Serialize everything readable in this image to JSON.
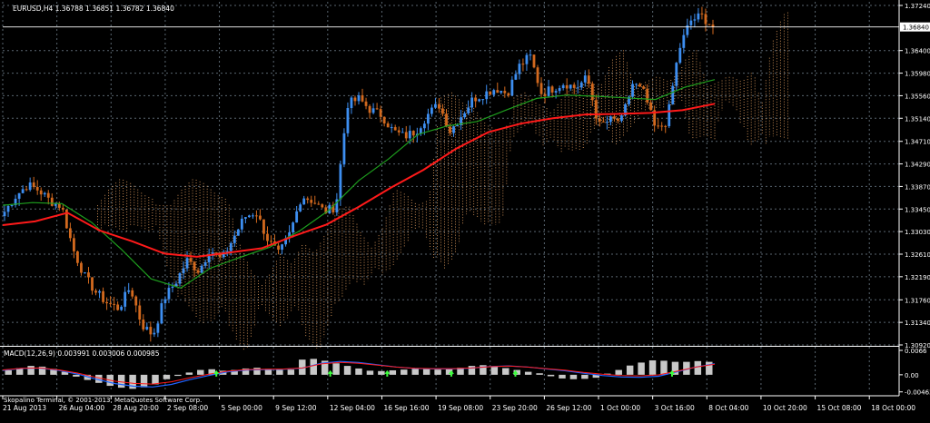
{
  "window": {
    "symbol_caption": "EURUSD,H4  1.36788 1.36851 1.36782 1.36840",
    "macd_caption": "MACD(12,26,9) 0.003991 0.003006 0.000985",
    "copyright": "Skopalino Terminal, © 2001-2013, MetaQuotes Software Corp."
  },
  "colors": {
    "background": "#000000",
    "grid": "#5a6670",
    "axis_text": "#ffffff",
    "candle_up": "#3d8ef0",
    "candle_down": "#d2691e",
    "ma_fast": "#1e9e1e",
    "ma_slow": "#ff1a1a",
    "cloud": "#ffb26b",
    "macd_hist": "#c8c8c8",
    "macd_signal": "#1e64ff",
    "price_line": "#ffffff",
    "arrow": "#3cff3c"
  },
  "chart_data": [
    {
      "type": "candlestick",
      "symbol": "EURUSD",
      "timeframe": "H4",
      "ohlc_last": {
        "open": 1.36788,
        "high": 1.36851,
        "low": 1.36782,
        "close": 1.3684
      },
      "ylim": [
        1.3092,
        1.3724
      ],
      "price_ticks": [
        "1.37240",
        "1.36400",
        "1.35980",
        "1.35560",
        "1.35140",
        "1.34710",
        "1.34290",
        "1.33870",
        "1.33450",
        "1.33030",
        "1.32610",
        "1.32190",
        "1.31760",
        "1.31340",
        "1.30920"
      ],
      "current_price_label": "1.36840",
      "time_ticks": [
        "21 Aug 2013",
        "26 Aug 04:00",
        "28 Aug 20:00",
        "2 Sep 08:00",
        "5 Sep 00:00",
        "9 Sep 12:00",
        "12 Sep 04:00",
        "16 Sep 16:00",
        "19 Sep 08:00",
        "23 Sep 20:00",
        "26 Sep 12:00",
        "1 Oct 00:00",
        "3 Oct 16:00",
        "8 Oct 04:00",
        "10 Oct 20:00",
        "15 Oct 08:00",
        "18 Oct 00:00"
      ],
      "close_path": [
        1.334,
        1.337,
        1.339,
        1.338,
        1.336,
        1.335,
        1.327,
        1.322,
        1.319,
        1.317,
        1.316,
        1.32,
        1.313,
        1.311,
        1.318,
        1.321,
        1.325,
        1.323,
        1.327,
        1.325,
        1.329,
        1.333,
        1.334,
        1.329,
        1.326,
        1.33,
        1.337,
        1.336,
        1.334,
        1.335,
        1.354,
        1.355,
        1.353,
        1.352,
        1.349,
        1.348,
        1.349,
        1.352,
        1.354,
        1.349,
        1.352,
        1.355,
        1.356,
        1.357,
        1.356,
        1.361,
        1.363,
        1.356,
        1.357,
        1.358,
        1.357,
        1.359,
        1.35,
        1.351,
        1.351,
        1.358,
        1.356,
        1.349,
        1.351,
        1.364,
        1.3695,
        1.3705,
        1.3684
      ],
      "ma_fast": [
        1.3352,
        1.3357,
        1.3355,
        1.332,
        1.327,
        1.3215,
        1.3198,
        1.3235,
        1.3255,
        1.3274,
        1.3304,
        1.3343,
        1.3398,
        1.3438,
        1.3484,
        1.35,
        1.3508,
        1.353,
        1.3551,
        1.3557,
        1.3555,
        1.3552,
        1.3549,
        1.3572,
        1.3586
      ],
      "ma_slow": [
        1.3315,
        1.3322,
        1.3338,
        1.3305,
        1.3285,
        1.3262,
        1.3256,
        1.3264,
        1.3272,
        1.3295,
        1.3316,
        1.3349,
        1.3385,
        1.3418,
        1.3457,
        1.3488,
        1.3504,
        1.3514,
        1.3521,
        1.3522,
        1.3524,
        1.3529,
        1.3541
      ]
    },
    {
      "type": "macd",
      "params": "12,26,9",
      "values": {
        "main": 0.003991,
        "signal": 0.003006,
        "histogram": 0.000985
      },
      "ylim": [
        -0.0047,
        0.0066
      ],
      "ticks": [
        "0.0066",
        "0.00",
        "-0.004631"
      ],
      "histogram": [
        0.0012,
        0.0018,
        0.0024,
        0.0022,
        0.0016,
        0.0008,
        -0.0005,
        -0.0014,
        -0.0022,
        -0.003,
        -0.0035,
        -0.0038,
        -0.0034,
        -0.0026,
        -0.0012,
        -0.0003,
        0.0006,
        0.0013,
        0.0015,
        0.0011,
        0.0013,
        0.0017,
        0.0019,
        0.0016,
        0.0013,
        0.0014,
        0.0041,
        0.0043,
        0.0038,
        0.0031,
        0.0024,
        0.0017,
        0.0011,
        0.001,
        0.0012,
        0.0014,
        0.0016,
        0.0016,
        0.0014,
        0.0016,
        0.0019,
        0.0024,
        0.0026,
        0.0022,
        0.0018,
        0.0013,
        0.0008,
        0.0004,
        -0.0004,
        -0.001,
        -0.0012,
        -0.0011,
        -0.0008,
        0.0003,
        0.0013,
        0.0025,
        0.0033,
        0.0039,
        0.0038,
        0.0035,
        0.0035,
        0.0037,
        0.0035
      ],
      "signal": [
        0.0012,
        0.0017,
        0.0018,
        0.0012,
        0.0002,
        -0.0012,
        -0.0024,
        -0.0031,
        -0.0033,
        -0.0026,
        -0.0013,
        -0.0002,
        0.0008,
        0.0013,
        0.0014,
        0.0015,
        0.0018,
        0.0031,
        0.0036,
        0.0033,
        0.0027,
        0.0021,
        0.0017,
        0.0016,
        0.0016,
        0.0018,
        0.0022,
        0.0024,
        0.0021,
        0.0016,
        0.0011,
        0.0004,
        -0.0002,
        -0.0006,
        -0.0007,
        -0.0004,
        0.0008,
        0.0021,
        0.003
      ]
    }
  ]
}
